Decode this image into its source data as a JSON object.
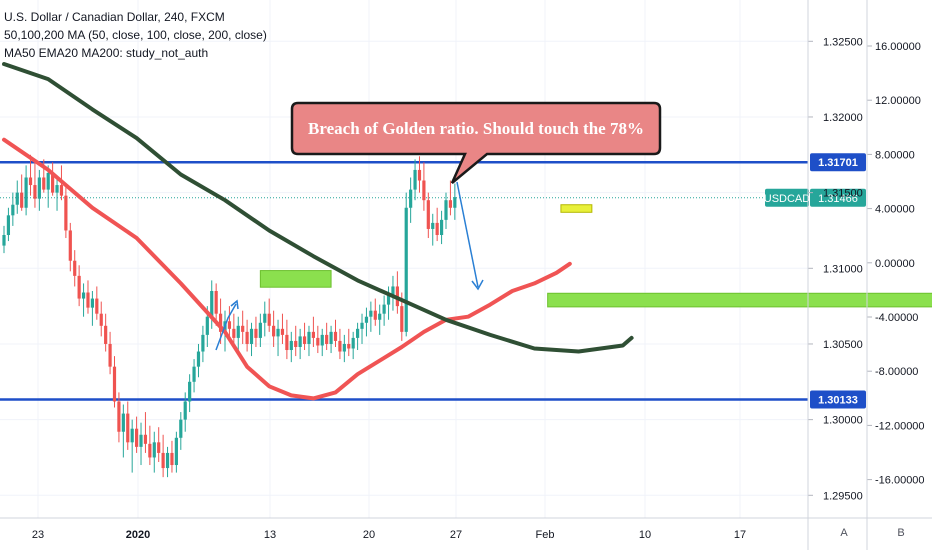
{
  "legend": {
    "line1": "U.S. Dollar / Canadian Dollar, 240, FXCM",
    "line2": "50,100,200 MA (50, close, 100, close, 200, close)",
    "line3": "MA50 EMA20 MA200: study_not_auth"
  },
  "annotation": {
    "text": "Breach of Golden ratio. Should touch the 78%"
  },
  "axis_buttons": {
    "a": "A",
    "b": "B"
  },
  "colors": {
    "candle_up": "#26a69a",
    "candle_down": "#ef5350",
    "ma_fast": "#f05454",
    "ma_slow": "#2f4f34",
    "hline": "#1e4fc8",
    "price_line": "#26a69a",
    "target_zone": "#8be04e",
    "arrow": "#2a7fd4",
    "callout_fill": "#e98686",
    "callout_border": "#1a1a1a"
  },
  "chart_data": {
    "type": "candlestick",
    "symbol": "USDCAD",
    "x_tick_labels": [
      "23",
      "2020",
      "13",
      "20",
      "27",
      "Feb",
      "10",
      "17"
    ],
    "price_axis": {
      "ticks": [
        "1.32500",
        "1.32000",
        "1.31500",
        "1.31000",
        "1.30500",
        "1.30000",
        "1.29500"
      ],
      "range": [
        1.2935,
        1.3272
      ]
    },
    "secondary_axis": {
      "ticks": [
        "16.00000",
        "12.00000",
        "8.00000",
        "4.00000",
        "0.00000",
        "-4.00000",
        "-8.00000",
        "-12.00000",
        "-16.00000"
      ]
    },
    "horizontal_levels": [
      {
        "price": 1.31701,
        "label": "1.31701"
      },
      {
        "price": 1.30133,
        "label": "1.30133"
      }
    ],
    "current_price": {
      "symbol": "USDCAD",
      "price": 1.31466,
      "label": "1.31466"
    },
    "ma_slow_points": [
      [
        0,
        1.3235
      ],
      [
        10,
        1.3225
      ],
      [
        20,
        1.3205
      ],
      [
        30,
        1.3186
      ],
      [
        40,
        1.3162
      ],
      [
        50,
        1.3145
      ],
      [
        60,
        1.3125
      ],
      [
        70,
        1.3108
      ],
      [
        80,
        1.3092
      ],
      [
        90,
        1.3079
      ],
      [
        100,
        1.3066
      ],
      [
        110,
        1.3056
      ],
      [
        120,
        1.3047
      ],
      [
        130,
        1.3045
      ],
      [
        140,
        1.3049
      ],
      [
        142,
        1.3054
      ]
    ],
    "ma_fast_points": [
      [
        0,
        1.3185
      ],
      [
        10,
        1.3165
      ],
      [
        14,
        1.3155
      ],
      [
        20,
        1.314
      ],
      [
        30,
        1.312
      ],
      [
        40,
        1.309
      ],
      [
        50,
        1.3058
      ],
      [
        55,
        1.3035
      ],
      [
        60,
        1.3022
      ],
      [
        65,
        1.3016
      ],
      [
        70,
        1.3014
      ],
      [
        75,
        1.3018
      ],
      [
        80,
        1.303
      ],
      [
        90,
        1.3048
      ],
      [
        95,
        1.3058
      ],
      [
        100,
        1.3066
      ],
      [
        105,
        1.3068
      ],
      [
        110,
        1.3076
      ],
      [
        115,
        1.3085
      ],
      [
        120,
        1.309
      ],
      [
        125,
        1.3097
      ],
      [
        128,
        1.3103
      ]
    ],
    "target_zone": {
      "from_x": 123,
      "to_x": 245,
      "price_top": 1.30835,
      "price_bottom": 1.30745
    },
    "left_zone": {
      "from_x": 58,
      "to_x": 74,
      "price_top": 1.30985,
      "price_bottom": 1.30875
    },
    "small_zone": {
      "from_x": 126,
      "to_x": 133,
      "price_top": 1.3142,
      "price_bottom": 1.3137
    },
    "ohlc": [
      [
        0,
        1.3115,
        1.3128,
        1.311,
        1.3122
      ],
      [
        1,
        1.3122,
        1.314,
        1.3118,
        1.3135
      ],
      [
        2,
        1.3135,
        1.315,
        1.3128,
        1.3142
      ],
      [
        3,
        1.3142,
        1.3158,
        1.3136,
        1.315
      ],
      [
        4,
        1.315,
        1.3162,
        1.3138,
        1.314
      ],
      [
        5,
        1.314,
        1.3168,
        1.3135,
        1.316
      ],
      [
        6,
        1.316,
        1.3175,
        1.3148,
        1.3155
      ],
      [
        7,
        1.3155,
        1.317,
        1.314,
        1.3146
      ],
      [
        8,
        1.3146,
        1.3165,
        1.3138,
        1.316
      ],
      [
        9,
        1.316,
        1.3172,
        1.315,
        1.3152
      ],
      [
        10,
        1.3152,
        1.3168,
        1.314,
        1.3163
      ],
      [
        11,
        1.3163,
        1.317,
        1.3148,
        1.315
      ],
      [
        12,
        1.315,
        1.316,
        1.3138,
        1.3155
      ],
      [
        13,
        1.3155,
        1.3168,
        1.3145,
        1.3148
      ],
      [
        14,
        1.3148,
        1.3156,
        1.312,
        1.3125
      ],
      [
        15,
        1.3125,
        1.313,
        1.3098,
        1.3105
      ],
      [
        16,
        1.3105,
        1.3112,
        1.3088,
        1.3095
      ],
      [
        17,
        1.3095,
        1.3102,
        1.3075,
        1.308
      ],
      [
        18,
        1.308,
        1.309,
        1.3068,
        1.3084
      ],
      [
        19,
        1.3084,
        1.3092,
        1.307,
        1.3074
      ],
      [
        20,
        1.3074,
        1.3085,
        1.3062,
        1.308
      ],
      [
        21,
        1.308,
        1.3088,
        1.3066,
        1.307
      ],
      [
        22,
        1.307,
        1.3078,
        1.3055,
        1.3062
      ],
      [
        23,
        1.3062,
        1.307,
        1.3045,
        1.305
      ],
      [
        24,
        1.305,
        1.3058,
        1.303,
        1.3035
      ],
      [
        25,
        1.3035,
        1.3042,
        1.3008,
        1.3012
      ],
      [
        26,
        1.3012,
        1.3018,
        1.2985,
        1.2992
      ],
      [
        27,
        1.2992,
        1.301,
        1.2975,
        1.3004
      ],
      [
        28,
        1.3004,
        1.3012,
        1.298,
        1.2985
      ],
      [
        29,
        1.2985,
        1.3,
        1.2965,
        1.2994
      ],
      [
        30,
        1.2994,
        1.3002,
        1.2978,
        1.2982
      ],
      [
        31,
        1.2982,
        1.2998,
        1.297,
        1.299
      ],
      [
        32,
        1.299,
        1.3005,
        1.2978,
        1.2984
      ],
      [
        33,
        1.2984,
        1.2996,
        1.297,
        1.2975
      ],
      [
        34,
        1.2975,
        1.2992,
        1.2965,
        1.2985
      ],
      [
        35,
        1.2985,
        1.2995,
        1.2972,
        1.2978
      ],
      [
        36,
        1.2978,
        1.299,
        1.2962,
        1.2968
      ],
      [
        37,
        1.2968,
        1.2982,
        1.2962,
        1.2978
      ],
      [
        38,
        1.2978,
        1.2986,
        1.2965,
        1.297
      ],
      [
        39,
        1.297,
        1.2992,
        1.2965,
        1.2988
      ],
      [
        40,
        1.2988,
        1.3005,
        1.298,
        1.3
      ],
      [
        41,
        1.3,
        1.3018,
        1.2992,
        1.3012
      ],
      [
        42,
        1.3012,
        1.303,
        1.3005,
        1.3025
      ],
      [
        43,
        1.3025,
        1.304,
        1.3018,
        1.3035
      ],
      [
        44,
        1.3035,
        1.305,
        1.3028,
        1.3045
      ],
      [
        45,
        1.3045,
        1.3062,
        1.3038,
        1.3056
      ],
      [
        46,
        1.3056,
        1.3075,
        1.3048,
        1.3068
      ],
      [
        47,
        1.3068,
        1.3092,
        1.306,
        1.3085
      ],
      [
        48,
        1.3085,
        1.309,
        1.3062,
        1.307
      ],
      [
        49,
        1.307,
        1.308,
        1.305,
        1.3058
      ],
      [
        50,
        1.3058,
        1.3072,
        1.3045,
        1.3065
      ],
      [
        51,
        1.3065,
        1.3075,
        1.3052,
        1.306
      ],
      [
        52,
        1.306,
        1.307,
        1.3048,
        1.3054
      ],
      [
        53,
        1.3054,
        1.3068,
        1.3045,
        1.3062
      ],
      [
        54,
        1.3062,
        1.3072,
        1.305,
        1.3058
      ],
      [
        55,
        1.3058,
        1.3066,
        1.3045,
        1.305
      ],
      [
        56,
        1.305,
        1.3064,
        1.3042,
        1.306
      ],
      [
        57,
        1.306,
        1.3068,
        1.3048,
        1.3054
      ],
      [
        58,
        1.3054,
        1.307,
        1.3048,
        1.3064
      ],
      [
        59,
        1.3064,
        1.3078,
        1.3055,
        1.307
      ],
      [
        60,
        1.307,
        1.308,
        1.3058,
        1.3062
      ],
      [
        61,
        1.3062,
        1.3072,
        1.3048,
        1.3055
      ],
      [
        62,
        1.3055,
        1.3066,
        1.3042,
        1.306
      ],
      [
        63,
        1.306,
        1.307,
        1.305,
        1.3056
      ],
      [
        64,
        1.3056,
        1.3066,
        1.304,
        1.3046
      ],
      [
        65,
        1.3046,
        1.3058,
        1.3038,
        1.3052
      ],
      [
        66,
        1.3052,
        1.3062,
        1.3042,
        1.3048
      ],
      [
        67,
        1.3048,
        1.306,
        1.304,
        1.3055
      ],
      [
        68,
        1.3055,
        1.3064,
        1.3046,
        1.305
      ],
      [
        69,
        1.305,
        1.3062,
        1.3042,
        1.3058
      ],
      [
        70,
        1.3058,
        1.3068,
        1.3048,
        1.3054
      ],
      [
        71,
        1.3054,
        1.3062,
        1.3044,
        1.3049
      ],
      [
        72,
        1.3049,
        1.306,
        1.3042,
        1.3056
      ],
      [
        73,
        1.3056,
        1.3064,
        1.3046,
        1.305
      ],
      [
        74,
        1.305,
        1.3062,
        1.3044,
        1.3058
      ],
      [
        75,
        1.3058,
        1.3066,
        1.3048,
        1.3052
      ],
      [
        76,
        1.3052,
        1.306,
        1.304,
        1.3045
      ],
      [
        77,
        1.3045,
        1.3056,
        1.3038,
        1.305
      ],
      [
        78,
        1.305,
        1.306,
        1.3042,
        1.3047
      ],
      [
        79,
        1.3047,
        1.3058,
        1.304,
        1.3054
      ],
      [
        80,
        1.3054,
        1.3064,
        1.3046,
        1.306
      ],
      [
        81,
        1.306,
        1.307,
        1.305,
        1.3064
      ],
      [
        82,
        1.3064,
        1.3074,
        1.3055,
        1.3068
      ],
      [
        83,
        1.3068,
        1.3078,
        1.3058,
        1.3072
      ],
      [
        84,
        1.3072,
        1.308,
        1.3062,
        1.3066
      ],
      [
        85,
        1.3066,
        1.3076,
        1.3056,
        1.307
      ],
      [
        86,
        1.307,
        1.3082,
        1.3062,
        1.3076
      ],
      [
        87,
        1.3076,
        1.3088,
        1.3066,
        1.3082
      ],
      [
        88,
        1.3082,
        1.3095,
        1.3072,
        1.3088
      ],
      [
        89,
        1.3088,
        1.3098,
        1.307,
        1.3075
      ],
      [
        90,
        1.3075,
        1.3084,
        1.3052,
        1.3058
      ],
      [
        91,
        1.3058,
        1.315,
        1.3055,
        1.314
      ],
      [
        92,
        1.314,
        1.316,
        1.313,
        1.3152
      ],
      [
        93,
        1.3152,
        1.3172,
        1.3145,
        1.3165
      ],
      [
        94,
        1.3165,
        1.3174,
        1.315,
        1.3158
      ],
      [
        95,
        1.3158,
        1.317,
        1.3138,
        1.3145
      ],
      [
        96,
        1.3145,
        1.315,
        1.312,
        1.3126
      ],
      [
        97,
        1.3126,
        1.3136,
        1.3115,
        1.313
      ],
      [
        98,
        1.313,
        1.314,
        1.3118,
        1.3122
      ],
      [
        99,
        1.3122,
        1.3138,
        1.3116,
        1.3132
      ],
      [
        100,
        1.3132,
        1.315,
        1.3126,
        1.3145
      ],
      [
        101,
        1.3145,
        1.3158,
        1.3135,
        1.314
      ],
      [
        102,
        1.314,
        1.3156,
        1.3132,
        1.3147
      ]
    ]
  }
}
